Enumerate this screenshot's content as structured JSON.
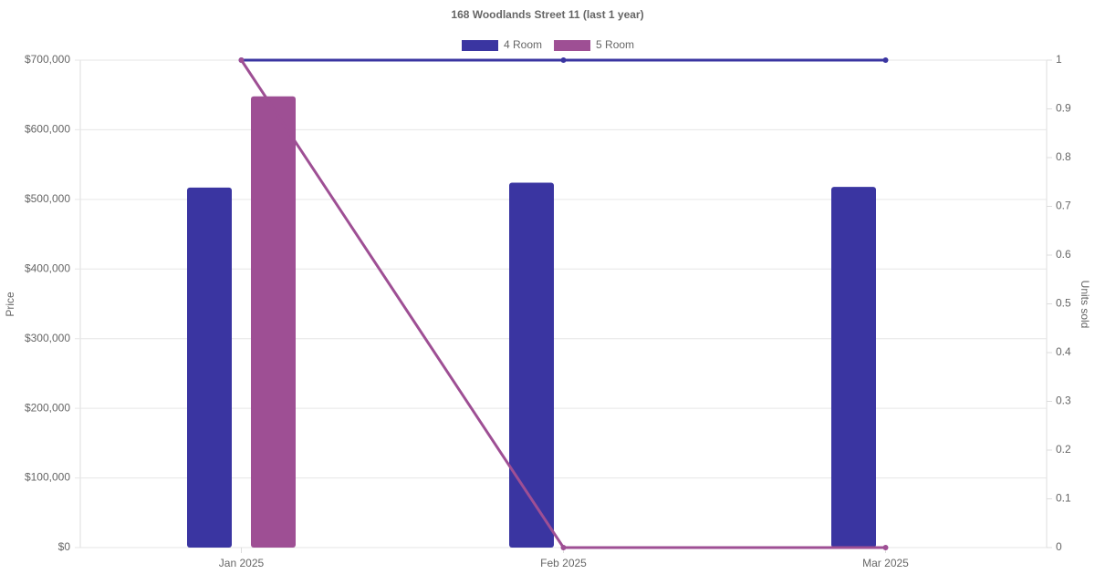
{
  "chart_data": {
    "type": "bar-line",
    "title": "168 Woodlands Street 11 (last 1 year)",
    "y_label": "Price",
    "y2_label": "Units sold",
    "categories": [
      "Jan 2025",
      "Feb 2025",
      "Mar 2025"
    ],
    "series": [
      {
        "name": "4 Room",
        "color": "#3a35a1",
        "values": [
          517000,
          524000,
          518000
        ],
        "units_sold": [
          1,
          1,
          1
        ]
      },
      {
        "name": "5 Room",
        "color": "#9e4f94",
        "values": [
          648000,
          null,
          null
        ],
        "units_sold": [
          1,
          0,
          0
        ]
      }
    ],
    "ylim": [
      0,
      700000
    ],
    "yticks": [
      {
        "value": 0,
        "label": "$0"
      },
      {
        "value": 100000,
        "label": "$100,000"
      },
      {
        "value": 200000,
        "label": "$200,000"
      },
      {
        "value": 300000,
        "label": "$300,000"
      },
      {
        "value": 400000,
        "label": "$400,000"
      },
      {
        "value": 500000,
        "label": "$500,000"
      },
      {
        "value": 600000,
        "label": "$600,000"
      },
      {
        "value": 700000,
        "label": "$700,000"
      }
    ],
    "y2lim": [
      0,
      1
    ],
    "y2ticks": [
      0,
      0.1,
      0.2,
      0.3,
      0.4,
      0.5,
      0.6,
      0.7,
      0.8,
      0.9,
      1
    ],
    "grid": true
  }
}
